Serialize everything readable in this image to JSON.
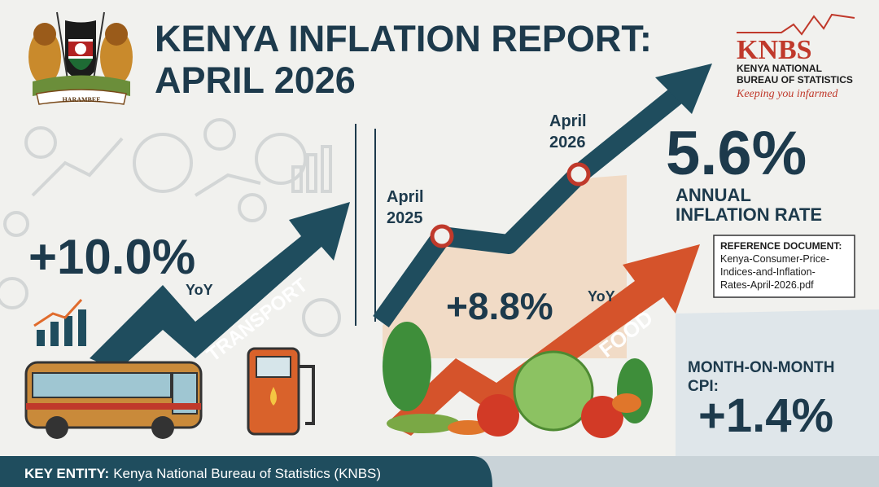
{
  "header": {
    "title_lines": [
      "KENYA INFLATION REPORT:",
      "APRIL 2026"
    ],
    "emblem_motto": "HARAMBEE"
  },
  "logo": {
    "abbr": "KNBS",
    "name_lines": [
      "KENYA NATIONAL",
      "BUREAU OF STATISTICS"
    ],
    "tagline": "Keeping you infarmed"
  },
  "transport": {
    "change": "+10.0%",
    "period": "YoY",
    "label": "TRANSPORT"
  },
  "timeline": {
    "start_lines": [
      "April",
      "2025"
    ],
    "end_lines": [
      "April",
      "2026"
    ]
  },
  "annual": {
    "rate": "5.6%",
    "label_lines": [
      "ANNUAL",
      "INFLATION RATE"
    ]
  },
  "reference": {
    "heading": "REFERENCE DOCUMENT:",
    "file_lines": [
      "Kenya-Consumer-Price-",
      "Indices-and-Inflation-",
      "Rates-April-2026.pdf"
    ]
  },
  "food": {
    "change": "+8.8%",
    "period": "YoY",
    "label": "FOOD"
  },
  "monthly": {
    "label_lines": [
      "MONTH-ON-MONTH",
      "CPI:"
    ],
    "change": "+1.4%"
  },
  "footer": {
    "key": "KEY ENTITY:",
    "entity": "Kenya National Bureau of Statistics (KNBS)"
  }
}
